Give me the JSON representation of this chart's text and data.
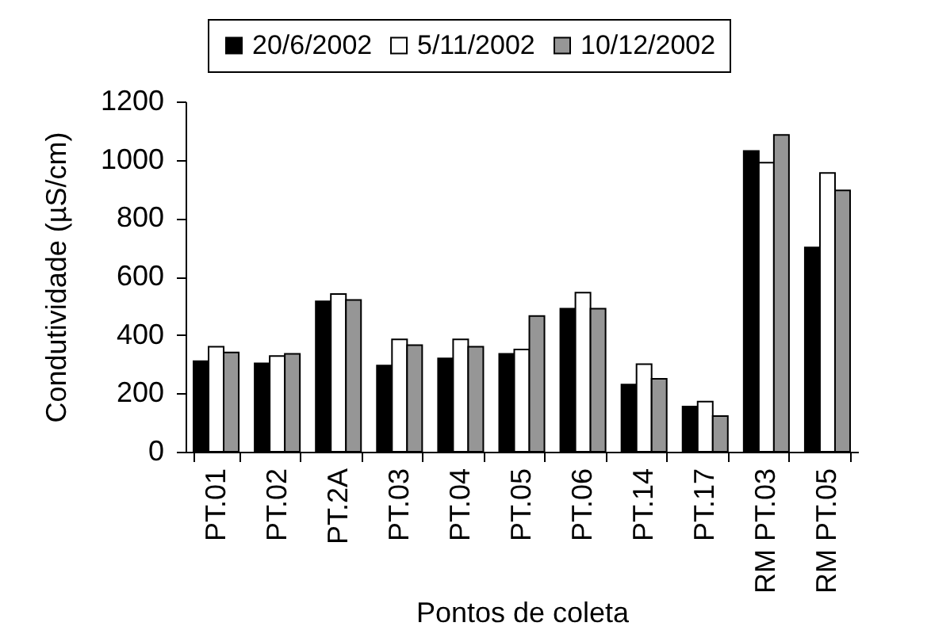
{
  "chart_data": {
    "type": "bar",
    "xlabel": "Pontos de coleta",
    "ylabel": "Condutividade (µS/cm)",
    "categories": [
      "PT.01",
      "PT.02",
      "PT.2A",
      "PT.03",
      "PT.04",
      "PT.05",
      "PT.06",
      "PT.14",
      "PT.17",
      "RM PT.03",
      "RM PT.05"
    ],
    "series": [
      {
        "name": "20/6/2002",
        "color": "#000000",
        "values": [
          310,
          303,
          515,
          295,
          320,
          335,
          490,
          230,
          155,
          1030,
          700
        ]
      },
      {
        "name": "5/11/2002",
        "color": "#ffffff",
        "values": [
          360,
          328,
          540,
          385,
          385,
          350,
          545,
          300,
          172,
          990,
          955
        ]
      },
      {
        "name": "10/12/2002",
        "color": "#969696",
        "values": [
          340,
          335,
          520,
          365,
          360,
          465,
          490,
          250,
          122,
          1085,
          895
        ]
      }
    ],
    "ylim": [
      0,
      1200
    ],
    "yticks": [
      0,
      200,
      400,
      600,
      800,
      1000,
      1200
    ],
    "legend": "top"
  }
}
